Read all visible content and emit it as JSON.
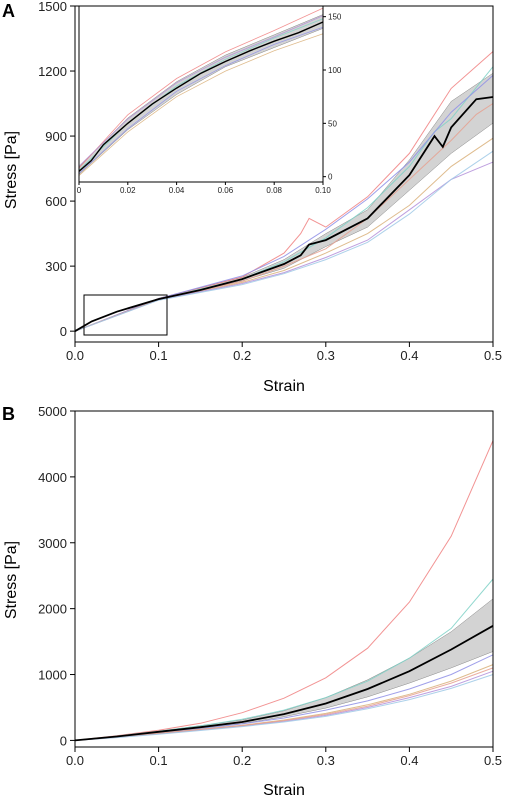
{
  "colors": {
    "mean": "#000000",
    "band": "#b5b5b5",
    "traces": [
      "#f08080",
      "#7fd1c7",
      "#8f8fe6",
      "#d9b07a",
      "#b38fd9",
      "#e6a08f",
      "#9fc9e6",
      "#d98fb3",
      "#a6d98f"
    ]
  },
  "chart_data": [
    {
      "panel": "A",
      "type": "line",
      "xlabel": "Strain",
      "ylabel": "Stress [Pa]",
      "xlim": [
        0,
        0.5
      ],
      "ylim": [
        -50,
        1500
      ],
      "xticks": [
        "0.0",
        "0.1",
        "0.2",
        "0.3",
        "0.4",
        "0.5"
      ],
      "yticks": [
        "0",
        "300",
        "600",
        "900",
        "1200",
        "1500"
      ],
      "xtick_values": [
        0,
        0.1,
        0.2,
        0.3,
        0.4,
        0.5
      ],
      "ytick_values": [
        0,
        300,
        600,
        900,
        1200,
        1500
      ],
      "mean": {
        "x": [
          0,
          0.02,
          0.05,
          0.1,
          0.15,
          0.2,
          0.25,
          0.27,
          0.28,
          0.3,
          0.35,
          0.4,
          0.43,
          0.44,
          0.45,
          0.48,
          0.5
        ],
        "y": [
          0,
          45,
          90,
          148,
          190,
          240,
          310,
          350,
          400,
          420,
          520,
          720,
          900,
          850,
          940,
          1070,
          1080
        ]
      },
      "band": {
        "x": [
          0,
          0.1,
          0.2,
          0.25,
          0.3,
          0.35,
          0.4,
          0.45,
          0.5
        ],
        "lower": [
          0,
          145,
          232,
          290,
          390,
          480,
          650,
          820,
          960
        ],
        "upper": [
          0,
          152,
          248,
          330,
          450,
          560,
          790,
          1060,
          1190
        ]
      },
      "series": [
        {
          "x": [
            0,
            0.1,
            0.2,
            0.25,
            0.27,
            0.28,
            0.3,
            0.35,
            0.4,
            0.45,
            0.5
          ],
          "y": [
            0,
            150,
            250,
            360,
            450,
            520,
            480,
            620,
            820,
            1120,
            1290
          ]
        },
        {
          "x": [
            0,
            0.1,
            0.2,
            0.25,
            0.3,
            0.35,
            0.4,
            0.43,
            0.45,
            0.5
          ],
          "y": [
            0,
            148,
            240,
            320,
            430,
            570,
            760,
            920,
            980,
            1220
          ]
        },
        {
          "x": [
            0,
            0.1,
            0.2,
            0.25,
            0.28,
            0.3,
            0.35,
            0.4,
            0.45,
            0.5
          ],
          "y": [
            0,
            150,
            255,
            345,
            420,
            470,
            610,
            780,
            1010,
            1180
          ]
        },
        {
          "x": [
            0,
            0.1,
            0.2,
            0.25,
            0.3,
            0.35,
            0.4,
            0.45,
            0.5
          ],
          "y": [
            0,
            145,
            225,
            280,
            360,
            450,
            580,
            760,
            890
          ]
        },
        {
          "x": [
            0,
            0.1,
            0.2,
            0.25,
            0.3,
            0.35,
            0.4,
            0.45,
            0.5
          ],
          "y": [
            0,
            144,
            220,
            270,
            340,
            420,
            560,
            700,
            780
          ]
        },
        {
          "x": [
            0,
            0.1,
            0.2,
            0.25,
            0.3,
            0.35,
            0.4,
            0.45,
            0.48,
            0.5
          ],
          "y": [
            0,
            146,
            230,
            300,
            380,
            520,
            700,
            880,
            1000,
            1050
          ]
        },
        {
          "x": [
            0,
            0.1,
            0.2,
            0.25,
            0.3,
            0.35,
            0.4,
            0.45,
            0.5
          ],
          "y": [
            0,
            143,
            215,
            265,
            330,
            410,
            540,
            700,
            830
          ]
        }
      ]
    },
    {
      "panel": "A-inset",
      "type": "line",
      "xlim": [
        0,
        0.1
      ],
      "ylim": [
        -5,
        160
      ],
      "xticks": [
        "0",
        "0.02",
        "0.04",
        "0.06",
        "0.08",
        "0.10"
      ],
      "yticks": [
        "0",
        "50",
        "100",
        "150"
      ],
      "xtick_values": [
        0,
        0.02,
        0.04,
        0.06,
        0.08,
        0.1
      ],
      "ytick_values": [
        0,
        50,
        100,
        150
      ],
      "mean": {
        "x": [
          0,
          0.005,
          0.01,
          0.02,
          0.03,
          0.04,
          0.05,
          0.06,
          0.07,
          0.08,
          0.09,
          0.1
        ],
        "y": [
          5,
          15,
          30,
          50,
          68,
          83,
          97,
          108,
          118,
          127,
          135,
          145
        ]
      },
      "band": {
        "x": [
          0,
          0.02,
          0.04,
          0.06,
          0.08,
          0.1
        ],
        "lower": [
          2,
          44,
          77,
          103,
          121,
          139
        ],
        "upper": [
          9,
          55,
          89,
          114,
          133,
          152
        ]
      },
      "series": [
        {
          "x": [
            0,
            0.02,
            0.04,
            0.06,
            0.08,
            0.1
          ],
          "y": [
            8,
            58,
            92,
            117,
            137,
            158
          ]
        },
        {
          "x": [
            0,
            0.02,
            0.04,
            0.06,
            0.08,
            0.1
          ],
          "y": [
            6,
            50,
            85,
            110,
            130,
            148
          ]
        },
        {
          "x": [
            0,
            0.02,
            0.04,
            0.06,
            0.08,
            0.1
          ],
          "y": [
            3,
            45,
            80,
            104,
            124,
            140
          ]
        },
        {
          "x": [
            0,
            0.02,
            0.04,
            0.06,
            0.08,
            0.1
          ],
          "y": [
            1,
            42,
            75,
            99,
            118,
            134
          ]
        },
        {
          "x": [
            0,
            0.02,
            0.04,
            0.06,
            0.08,
            0.1
          ],
          "y": [
            10,
            54,
            88,
            112,
            131,
            151
          ]
        }
      ]
    },
    {
      "panel": "B",
      "type": "line",
      "xlabel": "Strain",
      "ylabel": "Stress [Pa]",
      "xlim": [
        0,
        0.5
      ],
      "ylim": [
        -100,
        5000
      ],
      "xticks": [
        "0.0",
        "0.1",
        "0.2",
        "0.3",
        "0.4",
        "0.5"
      ],
      "yticks": [
        "0",
        "1000",
        "2000",
        "3000",
        "4000",
        "5000"
      ],
      "xtick_values": [
        0,
        0.1,
        0.2,
        0.3,
        0.4,
        0.5
      ],
      "ytick_values": [
        0,
        1000,
        2000,
        3000,
        4000,
        5000
      ],
      "mean": {
        "x": [
          0,
          0.05,
          0.1,
          0.15,
          0.2,
          0.25,
          0.3,
          0.35,
          0.4,
          0.45,
          0.5
        ],
        "y": [
          0,
          60,
          130,
          200,
          280,
          400,
          560,
          780,
          1050,
          1380,
          1740
        ]
      },
      "band": {
        "x": [
          0,
          0.1,
          0.2,
          0.25,
          0.3,
          0.35,
          0.4,
          0.45,
          0.5
        ],
        "lower": [
          0,
          120,
          255,
          360,
          490,
          660,
          870,
          1100,
          1350
        ],
        "upper": [
          0,
          140,
          310,
          450,
          650,
          920,
          1250,
          1650,
          2150
        ]
      },
      "series": [
        {
          "x": [
            0,
            0.05,
            0.1,
            0.15,
            0.2,
            0.25,
            0.3,
            0.35,
            0.4,
            0.45,
            0.5
          ],
          "y": [
            0,
            70,
            155,
            260,
            420,
            640,
            950,
            1400,
            2100,
            3100,
            4550
          ]
        },
        {
          "x": [
            0,
            0.05,
            0.1,
            0.15,
            0.2,
            0.25,
            0.3,
            0.35,
            0.4,
            0.45,
            0.5
          ],
          "y": [
            0,
            65,
            140,
            220,
            320,
            460,
            650,
            900,
            1250,
            1700,
            2450
          ]
        },
        {
          "x": [
            0,
            0.05,
            0.1,
            0.15,
            0.2,
            0.25,
            0.3,
            0.35,
            0.4,
            0.45,
            0.5
          ],
          "y": [
            0,
            55,
            120,
            180,
            250,
            340,
            460,
            600,
            780,
            1000,
            1300
          ]
        },
        {
          "x": [
            0,
            0.05,
            0.1,
            0.15,
            0.2,
            0.25,
            0.3,
            0.35,
            0.4,
            0.45,
            0.5
          ],
          "y": [
            0,
            50,
            110,
            170,
            230,
            310,
            410,
            540,
            700,
            900,
            1150
          ]
        },
        {
          "x": [
            0,
            0.05,
            0.1,
            0.15,
            0.2,
            0.25,
            0.3,
            0.35,
            0.4,
            0.45,
            0.5
          ],
          "y": [
            0,
            45,
            100,
            160,
            220,
            290,
            380,
            500,
            650,
            820,
            1050
          ]
        },
        {
          "x": [
            0,
            0.05,
            0.1,
            0.15,
            0.2,
            0.25,
            0.3,
            0.35,
            0.4,
            0.45,
            0.5
          ],
          "y": [
            0,
            48,
            105,
            165,
            225,
            300,
            395,
            520,
            680,
            870,
            1100
          ]
        },
        {
          "x": [
            0,
            0.05,
            0.1,
            0.15,
            0.2,
            0.25,
            0.3,
            0.35,
            0.4,
            0.45,
            0.5
          ],
          "y": [
            0,
            42,
            95,
            150,
            210,
            280,
            365,
            480,
            620,
            790,
            1000
          ]
        }
      ]
    }
  ]
}
